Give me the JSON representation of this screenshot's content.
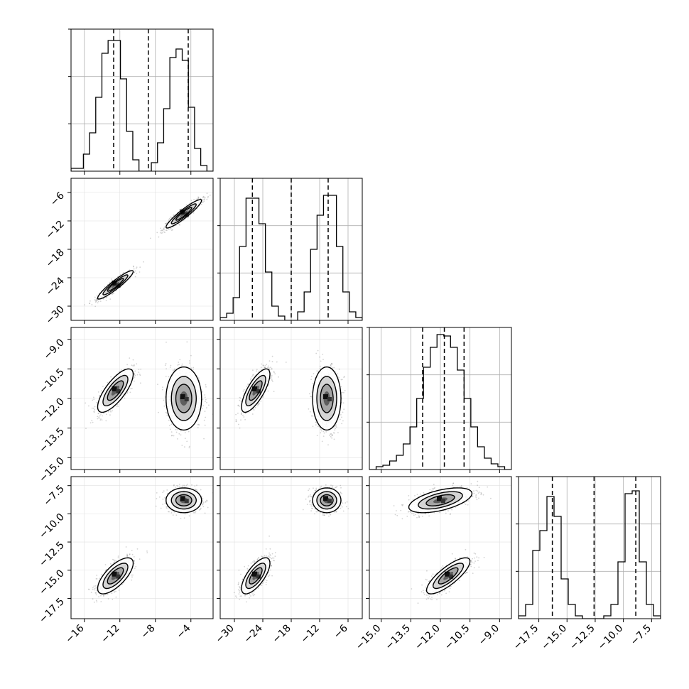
{
  "chart_data": {
    "type": "corner",
    "description_colors": {
      "frame": "#000000",
      "grid": "#b0b0b0",
      "contour": "#000000",
      "scatter": "#808080"
    },
    "parameters": [
      {
        "id": "p0",
        "range": [
          -17.5,
          -1.5
        ],
        "ticks": [
          -16,
          -12,
          -8,
          -4
        ],
        "tick_labels": [
          "−16",
          "−12",
          "−8",
          "−4"
        ],
        "quantiles": [
          -12.7,
          -8.8,
          -4.3
        ],
        "histogram": [
          0.02,
          0.02,
          0.12,
          0.27,
          0.52,
          0.83,
          0.92,
          0.92,
          0.65,
          0.28,
          0.08,
          0.0,
          0.0,
          0.06,
          0.2,
          0.44,
          0.8,
          0.86,
          0.78,
          0.45,
          0.16,
          0.04,
          0.0
        ]
      },
      {
        "id": "p1",
        "range": [
          -33,
          -3
        ],
        "ticks": [
          -30,
          -24,
          -18,
          -12,
          -6
        ],
        "tick_labels": [
          "−30",
          "−24",
          "−18",
          "−12",
          "−6"
        ],
        "quantiles": [
          -26.2,
          -18.0,
          -10.2
        ],
        "histogram": [
          0.02,
          0.05,
          0.16,
          0.52,
          0.86,
          0.86,
          0.68,
          0.34,
          0.1,
          0.03,
          0.0,
          0.0,
          0.06,
          0.2,
          0.5,
          0.74,
          0.88,
          0.88,
          0.52,
          0.2,
          0.06,
          0.02
        ]
      },
      {
        "id": "p2",
        "range": [
          -15.6,
          -8.4
        ],
        "ticks": [
          -15.0,
          -13.5,
          -12.0,
          -10.5,
          -9.0
        ],
        "tick_labels": [
          "−15.0",
          "−13.5",
          "−12.0",
          "−10.5",
          "−9.0"
        ],
        "quantiles": [
          -12.9,
          -11.8,
          -10.8
        ],
        "histogram": [
          0.0,
          0.02,
          0.03,
          0.06,
          0.1,
          0.18,
          0.3,
          0.5,
          0.72,
          0.86,
          0.95,
          0.94,
          0.86,
          0.7,
          0.5,
          0.3,
          0.16,
          0.08,
          0.04,
          0.02,
          0.0
        ]
      },
      {
        "id": "p3",
        "range": [
          -19.3,
          -6.7
        ],
        "ticks": [
          -17.5,
          -15.0,
          -12.5,
          -10.0,
          -7.5
        ],
        "tick_labels": [
          "−17.5",
          "−15.0",
          "−12.5",
          "−10.0",
          "−7.5"
        ],
        "quantiles": [
          -16.3,
          -12.6,
          -8.9
        ],
        "histogram": [
          0.02,
          0.1,
          0.48,
          0.62,
          0.86,
          0.72,
          0.28,
          0.1,
          0.02,
          0.0,
          0.0,
          0.0,
          0.02,
          0.1,
          0.4,
          0.88,
          0.9,
          0.4,
          0.1,
          0.02
        ]
      }
    ],
    "modes": [
      {
        "center": [
          -12.5,
          -25.5,
          -11.6,
          -15.5
        ],
        "sigma": [
          1.0,
          1.5,
          0.55,
          0.8
        ]
      },
      {
        "center": [
          -4.8,
          -10.5,
          -12.0,
          -8.8
        ],
        "sigma": [
          1.0,
          1.5,
          0.8,
          0.55
        ]
      }
    ],
    "correlations": {
      "1,0": [
        0.93,
        0.93
      ],
      "2,0": [
        0.75,
        0.0
      ],
      "2,1": [
        0.75,
        0.0
      ],
      "3,0": [
        0.7,
        0.0
      ],
      "3,1": [
        0.7,
        0.0
      ],
      "3,2": [
        0.8,
        0.55
      ]
    },
    "diagonal_yticks": 3,
    "grid": true,
    "layout": "lower-triangle"
  }
}
